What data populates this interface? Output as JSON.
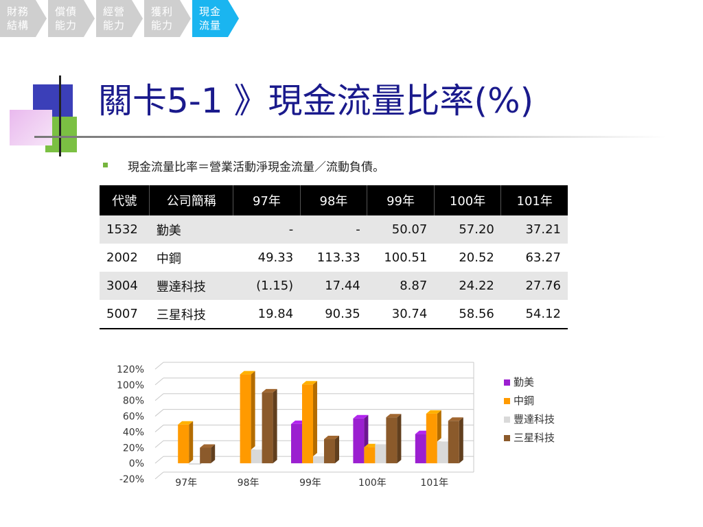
{
  "breadcrumbs": [
    {
      "line1": "財務",
      "line2": "結構",
      "active": false
    },
    {
      "line1": "償債",
      "line2": "能力",
      "active": false
    },
    {
      "line1": "經營",
      "line2": "能力",
      "active": false
    },
    {
      "line1": "獲利",
      "line2": "能力",
      "active": false
    },
    {
      "line1": "現金",
      "line2": "流量",
      "active": true
    }
  ],
  "title": "關卡5-1 》現金流量比率(%)",
  "bullet": "現金流量比率＝營業活動淨現金流量／流動負債。",
  "table": {
    "headers": [
      "代號",
      "公司簡稱",
      "97年",
      "98年",
      "99年",
      "100年",
      "101年"
    ],
    "rows": [
      [
        "1532",
        "勤美",
        "-",
        "-",
        "50.07",
        "57.20",
        "37.21"
      ],
      [
        "2002",
        "中鋼",
        "49.33",
        "113.33",
        "100.51",
        "20.52",
        "63.27"
      ],
      [
        "3004",
        "豐達科技",
        "(1.15)",
        "17.44",
        "8.87",
        "24.22",
        "27.76"
      ],
      [
        "5007",
        "三星科技",
        "19.84",
        "90.35",
        "30.74",
        "58.56",
        "54.12"
      ]
    ]
  },
  "chart_data": {
    "type": "bar",
    "categories": [
      "97年",
      "98年",
      "99年",
      "100年",
      "101年"
    ],
    "series": [
      {
        "name": "勤美",
        "values": [
          null,
          null,
          50.07,
          57.2,
          37.21
        ],
        "color": "#9b1fd0"
      },
      {
        "name": "中鋼",
        "values": [
          49.33,
          113.33,
          100.51,
          20.52,
          63.27
        ],
        "color": "#ff9a00"
      },
      {
        "name": "豐達科技",
        "values": [
          -1.15,
          17.44,
          8.87,
          24.22,
          27.76
        ],
        "color": "#d9d9d9"
      },
      {
        "name": "三星科技",
        "values": [
          19.84,
          90.35,
          30.74,
          58.56,
          54.12
        ],
        "color": "#8b5a2b"
      }
    ],
    "y_ticks": [
      "120%",
      "100%",
      "80%",
      "60%",
      "40%",
      "20%",
      "0%",
      "-20%"
    ],
    "ylim": [
      -20,
      120
    ],
    "grid": true,
    "legend": "right"
  }
}
